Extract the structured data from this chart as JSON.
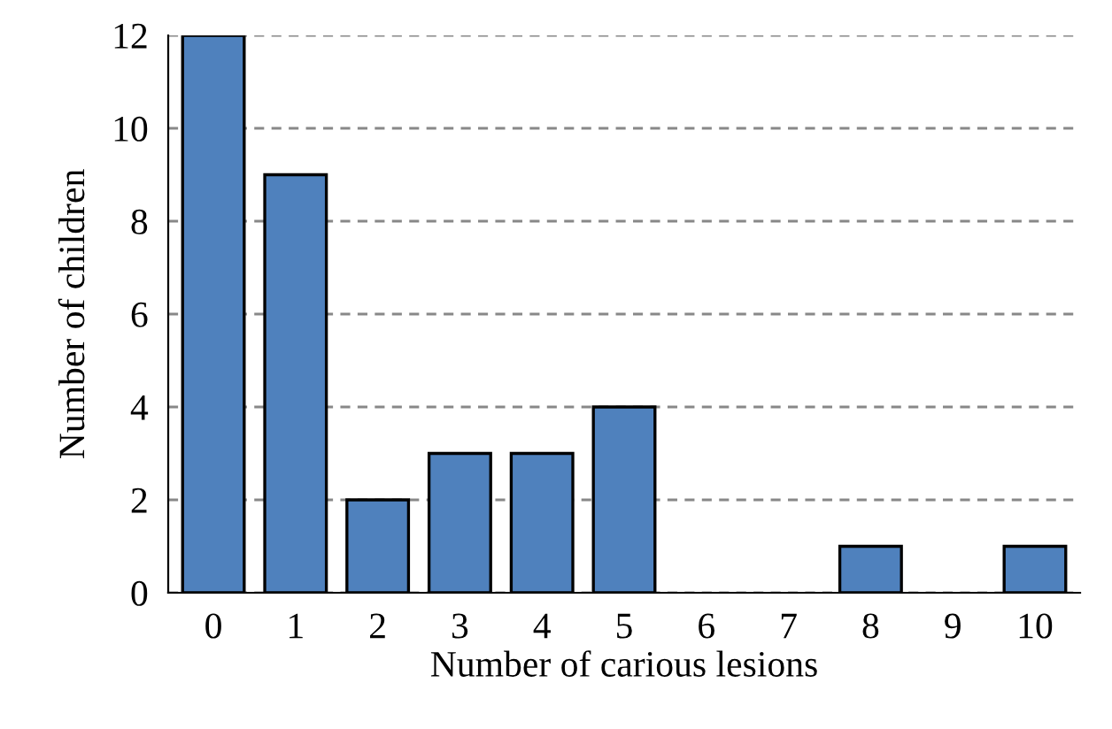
{
  "chart_data": {
    "type": "bar",
    "xlabel": "Number of carious lesions",
    "ylabel": "Number of children",
    "categories": [
      "0",
      "1",
      "2",
      "3",
      "4",
      "5",
      "6",
      "7",
      "8",
      "9",
      "10"
    ],
    "values": [
      12,
      9,
      2,
      3,
      3,
      4,
      0,
      0,
      1,
      0,
      1
    ],
    "color": "#4f81bd",
    "ylim": [
      0,
      12
    ],
    "yticks": [
      0,
      2,
      4,
      6,
      8,
      10,
      12
    ],
    "grid": "y",
    "line_style": "dashed"
  }
}
